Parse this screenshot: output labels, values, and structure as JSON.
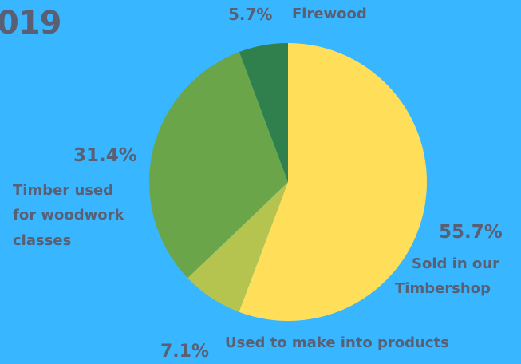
{
  "title_fragment": "019",
  "chart_data": {
    "type": "pie",
    "start": "12 o'clock",
    "direction": "clockwise",
    "slices": [
      {
        "label": "Sold in our Timbershop",
        "value": 55.7,
        "value_label": "55.7%",
        "label_lines": [
          "Sold in our",
          "Timbershop"
        ],
        "color": "#ffde59"
      },
      {
        "label": "Used to make into products",
        "value": 7.1,
        "value_label": "7.1%",
        "label_lines": [
          "Used to make into products"
        ],
        "color": "#b5c44e"
      },
      {
        "label": "Timber used for woodwork classes",
        "value": 31.4,
        "value_label": "31.4%",
        "label_lines": [
          "Timber used",
          "for woodwork",
          "classes"
        ],
        "color": "#6aa549"
      },
      {
        "label": "Firewood",
        "value": 5.7,
        "value_label": "5.7%",
        "label_lines": [
          "Firewood"
        ],
        "color": "#2f804d"
      }
    ]
  }
}
